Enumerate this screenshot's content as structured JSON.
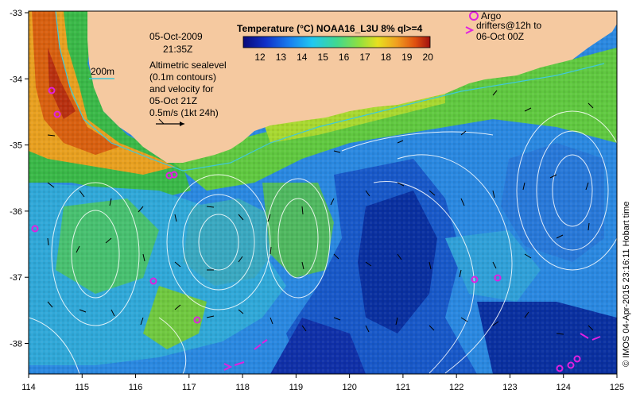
{
  "map": {
    "date": "05-Oct-2009",
    "time": "21:35Z",
    "contour_label": "200m",
    "legend_lines": [
      "Altimetric sealevel",
      "(0.1m contours)",
      "and velocity for",
      "05-Oct 21Z",
      "0.5m/s (1kt 24h)"
    ],
    "colorbar_title": "Temperature (°C) NOAA16_L3U 8% ql>=4",
    "colorbar_ticks": [
      "12",
      "13",
      "14",
      "15",
      "16",
      "17",
      "18",
      "19",
      "20"
    ],
    "argo_label": "Argo",
    "drifter_lines": [
      "drifters@12h to",
      "06-Oct 00Z"
    ],
    "credit": "© IMOS 04-Apr-2015 23:16:11 Hobart time",
    "x_ticks": [
      "114",
      "115",
      "116",
      "117",
      "118",
      "119",
      "120",
      "121",
      "122",
      "123",
      "124",
      "125"
    ],
    "y_ticks": [
      "-33",
      "-34",
      "-35",
      "-36",
      "-37",
      "-38"
    ],
    "colors": {
      "land": "#f5c9a0",
      "argo": "#e020e0",
      "contour": "#ffffff",
      "isobath": "#40c8d8"
    }
  }
}
